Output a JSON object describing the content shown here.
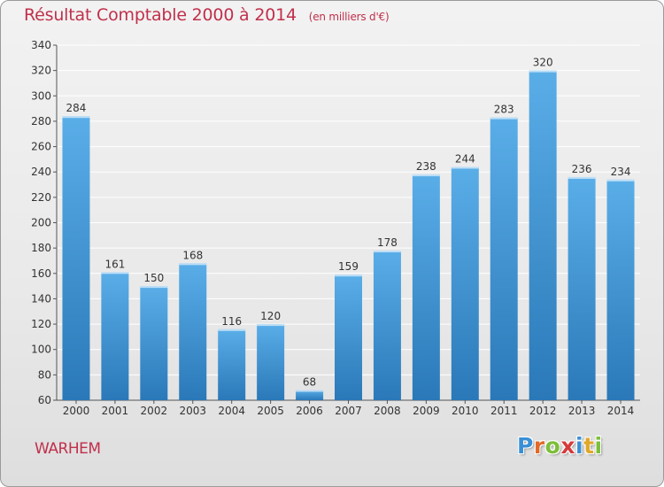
{
  "title": "Résultat Comptable 2000 à 2014",
  "unit_note": "(en milliers d'€)",
  "place": "WARHEM",
  "logo": {
    "letters": [
      "P",
      "r",
      "o",
      "x",
      "i",
      "t",
      "i"
    ],
    "colors": [
      "#3a8fd6",
      "#e06a2a",
      "#7cbf3a",
      "#d63a3a",
      "#3a8fd6",
      "#e0a82a",
      "#7cbf3a"
    ]
  },
  "colors": {
    "bar_light": "#5aaee8",
    "bar_dark": "#2a78b8",
    "title": "#c0304b",
    "grid": "#ffffff"
  },
  "chart_data": {
    "type": "bar",
    "categories": [
      "2000",
      "2001",
      "2002",
      "2003",
      "2004",
      "2005",
      "2006",
      "2007",
      "2008",
      "2009",
      "2010",
      "2011",
      "2012",
      "2013",
      "2014"
    ],
    "values": [
      284,
      161,
      150,
      168,
      116,
      120,
      68,
      159,
      178,
      238,
      244,
      283,
      320,
      236,
      234
    ],
    "ylim": [
      60,
      340
    ],
    "yticks": [
      60,
      80,
      100,
      120,
      140,
      160,
      180,
      200,
      220,
      240,
      260,
      280,
      300,
      320,
      340
    ],
    "grid": true,
    "title": "Résultat Comptable 2000 à 2014",
    "xlabel": "",
    "ylabel": ""
  }
}
